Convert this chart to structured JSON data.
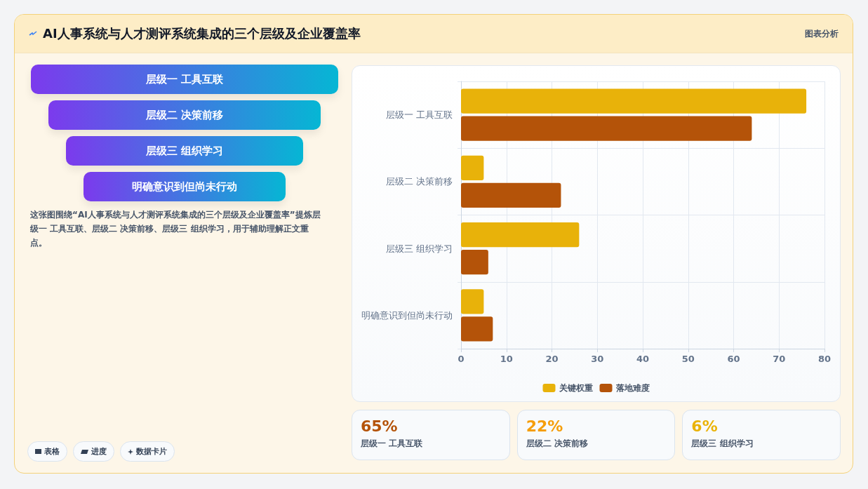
{
  "chart_data": {
    "type": "bar",
    "title": "AI人事系统与人才测评系统集成的三个层级及企业覆盖率",
    "orientation": "horizontal",
    "categories": [
      "层级一 工具互联",
      "层级二 决策前移",
      "层级三 组织学习",
      "明确意识到但尚未行动"
    ],
    "series": [
      {
        "name": "关键权重",
        "color": "#e8b20a",
        "values": [
          76,
          5,
          26,
          5
        ]
      },
      {
        "name": "落地难度",
        "color": "#b45309",
        "values": [
          64,
          22,
          6,
          7
        ]
      }
    ],
    "xlim": [
      0,
      80
    ],
    "xticks": [
      0,
      10,
      20,
      30,
      40,
      50,
      60,
      70,
      80
    ],
    "grid": true,
    "legend": "bottom",
    "annotations": [
      "图表分析",
      "层级一 工具互联",
      "层级二 决策前移",
      "层级三 组织学习",
      "明确意识到但尚未行动",
      "这张图围绕“AI人事系统与人才测评系统集成的三个层级及企业覆盖率”提炼层级一 工具互联、层级二 决策前移、层级三 组织学习，用于辅助理解正文重点。",
      "65%",
      "层级一 工具互联",
      "22%",
      "层级二 决策前移",
      "6%",
      "层级三 组织学习",
      "表格",
      "进度",
      "数据卡片"
    ]
  }
}
